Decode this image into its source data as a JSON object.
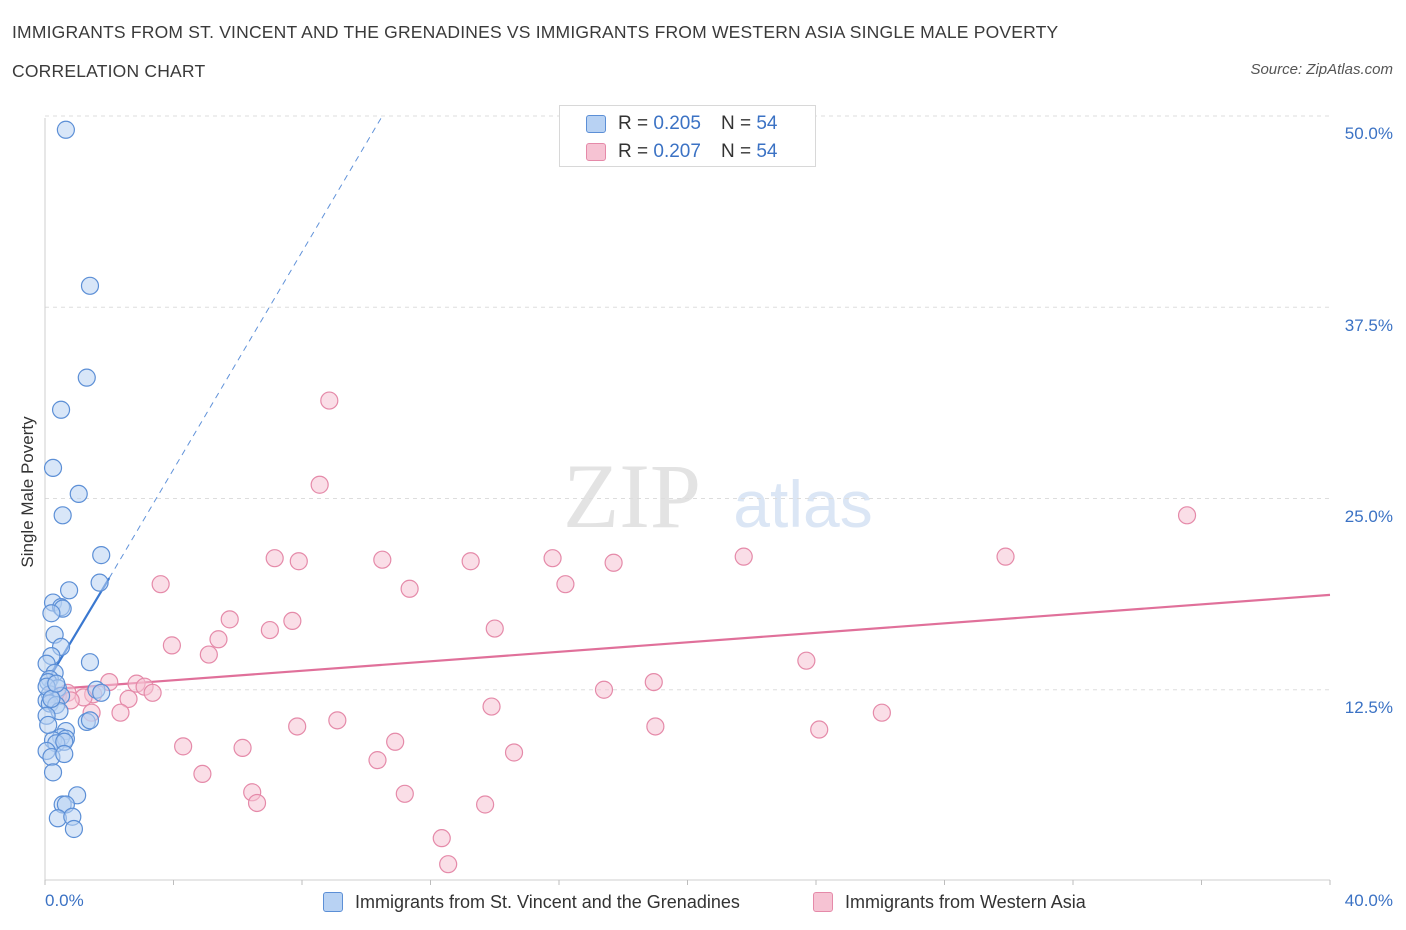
{
  "title_line1": "IMMIGRANTS FROM ST. VINCENT AND THE GRENADINES VS IMMIGRANTS FROM WESTERN ASIA SINGLE MALE POVERTY",
  "title_line2": "CORRELATION CHART",
  "source": "Source: ZipAtlas.com",
  "watermark": {
    "zip": "ZIP",
    "atlas": "atlas"
  },
  "legend": {
    "r_label": "R =",
    "n_label": "N =",
    "rows": [
      {
        "r": "0.205",
        "n": "54"
      },
      {
        "r": "0.207",
        "n": "54"
      }
    ]
  },
  "colors": {
    "blue_fill": "#b8d2f3",
    "blue_stroke": "#5c8fd6",
    "blue_line": "#3a78d0",
    "pink_fill": "#f6c3d3",
    "pink_stroke": "#e58aa9",
    "pink_line": "#e0709a",
    "tick_text": "#3b72c4",
    "grid": "#dddddd"
  },
  "chart_data": {
    "type": "scatter",
    "xlabel": "",
    "ylabel": "Single Male Poverty",
    "xlim": [
      0,
      40
    ],
    "ylim": [
      0,
      50
    ],
    "x_tick_labels": [
      "0.0%",
      "40.0%"
    ],
    "y_ticks": [
      12.5,
      25.0,
      37.5,
      50.0
    ],
    "y_tick_labels": [
      "12.5%",
      "25.0%",
      "37.5%",
      "50.0%"
    ],
    "grid": true,
    "series": [
      {
        "name": "Immigrants from St. Vincent and the Grenadines",
        "color": "blue",
        "trend": {
          "x": [
            0,
            2.0
          ],
          "y": [
            12.8,
            19.8
          ],
          "dashed_extension_to": [
            10.5,
            50
          ]
        },
        "points": [
          [
            0.65,
            49.1
          ],
          [
            1.4,
            38.9
          ],
          [
            1.3,
            32.9
          ],
          [
            0.5,
            30.8
          ],
          [
            0.25,
            27.0
          ],
          [
            1.05,
            25.3
          ],
          [
            0.55,
            23.9
          ],
          [
            1.75,
            21.3
          ],
          [
            1.7,
            19.5
          ],
          [
            0.75,
            19.0
          ],
          [
            0.25,
            18.2
          ],
          [
            0.5,
            17.9
          ],
          [
            0.55,
            17.8
          ],
          [
            0.2,
            17.5
          ],
          [
            0.3,
            16.1
          ],
          [
            0.5,
            15.3
          ],
          [
            0.2,
            14.7
          ],
          [
            1.4,
            14.3
          ],
          [
            0.05,
            14.2
          ],
          [
            0.3,
            13.6
          ],
          [
            0.15,
            13.2
          ],
          [
            0.1,
            13.0
          ],
          [
            0.4,
            12.6
          ],
          [
            1.6,
            12.5
          ],
          [
            1.75,
            12.3
          ],
          [
            0.15,
            12.2
          ],
          [
            0.5,
            12.1
          ],
          [
            0.05,
            11.8
          ],
          [
            0.15,
            11.6
          ],
          [
            0.35,
            11.5
          ],
          [
            0.45,
            11.1
          ],
          [
            0.05,
            10.8
          ],
          [
            1.3,
            10.4
          ],
          [
            1.4,
            10.5
          ],
          [
            0.65,
            9.8
          ],
          [
            0.5,
            9.4
          ],
          [
            0.25,
            9.2
          ],
          [
            0.65,
            9.3
          ],
          [
            0.35,
            9.0
          ],
          [
            0.6,
            9.1
          ],
          [
            0.05,
            8.5
          ],
          [
            0.2,
            8.1
          ],
          [
            0.6,
            8.3
          ],
          [
            0.25,
            7.1
          ],
          [
            1.0,
            5.6
          ],
          [
            0.55,
            5.0
          ],
          [
            0.65,
            5.0
          ],
          [
            0.4,
            4.1
          ],
          [
            0.85,
            4.2
          ],
          [
            0.9,
            3.4
          ],
          [
            0.05,
            12.7
          ],
          [
            0.2,
            11.9
          ],
          [
            0.1,
            10.2
          ],
          [
            0.35,
            12.9
          ]
        ]
      },
      {
        "name": "Immigrants from Western Asia",
        "color": "pink",
        "trend": {
          "x": [
            0,
            40
          ],
          "y": [
            12.5,
            18.7
          ]
        },
        "points": [
          [
            8.85,
            31.4
          ],
          [
            8.55,
            25.9
          ],
          [
            35.55,
            23.9
          ],
          [
            7.15,
            21.1
          ],
          [
            7.9,
            20.9
          ],
          [
            10.5,
            21.0
          ],
          [
            13.25,
            20.9
          ],
          [
            15.8,
            21.1
          ],
          [
            17.7,
            20.8
          ],
          [
            21.75,
            21.2
          ],
          [
            29.9,
            21.2
          ],
          [
            16.2,
            19.4
          ],
          [
            3.6,
            19.4
          ],
          [
            11.35,
            19.1
          ],
          [
            5.75,
            17.1
          ],
          [
            7.7,
            17.0
          ],
          [
            7.0,
            16.4
          ],
          [
            14.0,
            16.5
          ],
          [
            5.4,
            15.8
          ],
          [
            3.95,
            15.4
          ],
          [
            5.1,
            14.8
          ],
          [
            23.7,
            14.4
          ],
          [
            2.0,
            13.0
          ],
          [
            18.95,
            13.0
          ],
          [
            2.85,
            12.9
          ],
          [
            3.1,
            12.7
          ],
          [
            17.4,
            12.5
          ],
          [
            3.35,
            12.3
          ],
          [
            0.7,
            12.3
          ],
          [
            1.5,
            12.2
          ],
          [
            0.4,
            12.1
          ],
          [
            1.2,
            12.0
          ],
          [
            2.6,
            11.9
          ],
          [
            0.8,
            11.8
          ],
          [
            13.9,
            11.4
          ],
          [
            1.45,
            11.0
          ],
          [
            2.35,
            11.0
          ],
          [
            26.05,
            11.0
          ],
          [
            9.1,
            10.5
          ],
          [
            7.85,
            10.1
          ],
          [
            19.0,
            10.1
          ],
          [
            24.1,
            9.9
          ],
          [
            10.9,
            9.1
          ],
          [
            4.3,
            8.8
          ],
          [
            6.15,
            8.7
          ],
          [
            14.6,
            8.4
          ],
          [
            10.35,
            7.9
          ],
          [
            4.9,
            7.0
          ],
          [
            6.45,
            5.8
          ],
          [
            11.2,
            5.7
          ],
          [
            6.6,
            5.1
          ],
          [
            13.7,
            5.0
          ],
          [
            12.35,
            2.8
          ],
          [
            12.55,
            1.1
          ]
        ]
      }
    ]
  },
  "bottom_legend": [
    {
      "label": "Immigrants from St. Vincent and the Grenadines"
    },
    {
      "label": "Immigrants from Western Asia"
    }
  ]
}
